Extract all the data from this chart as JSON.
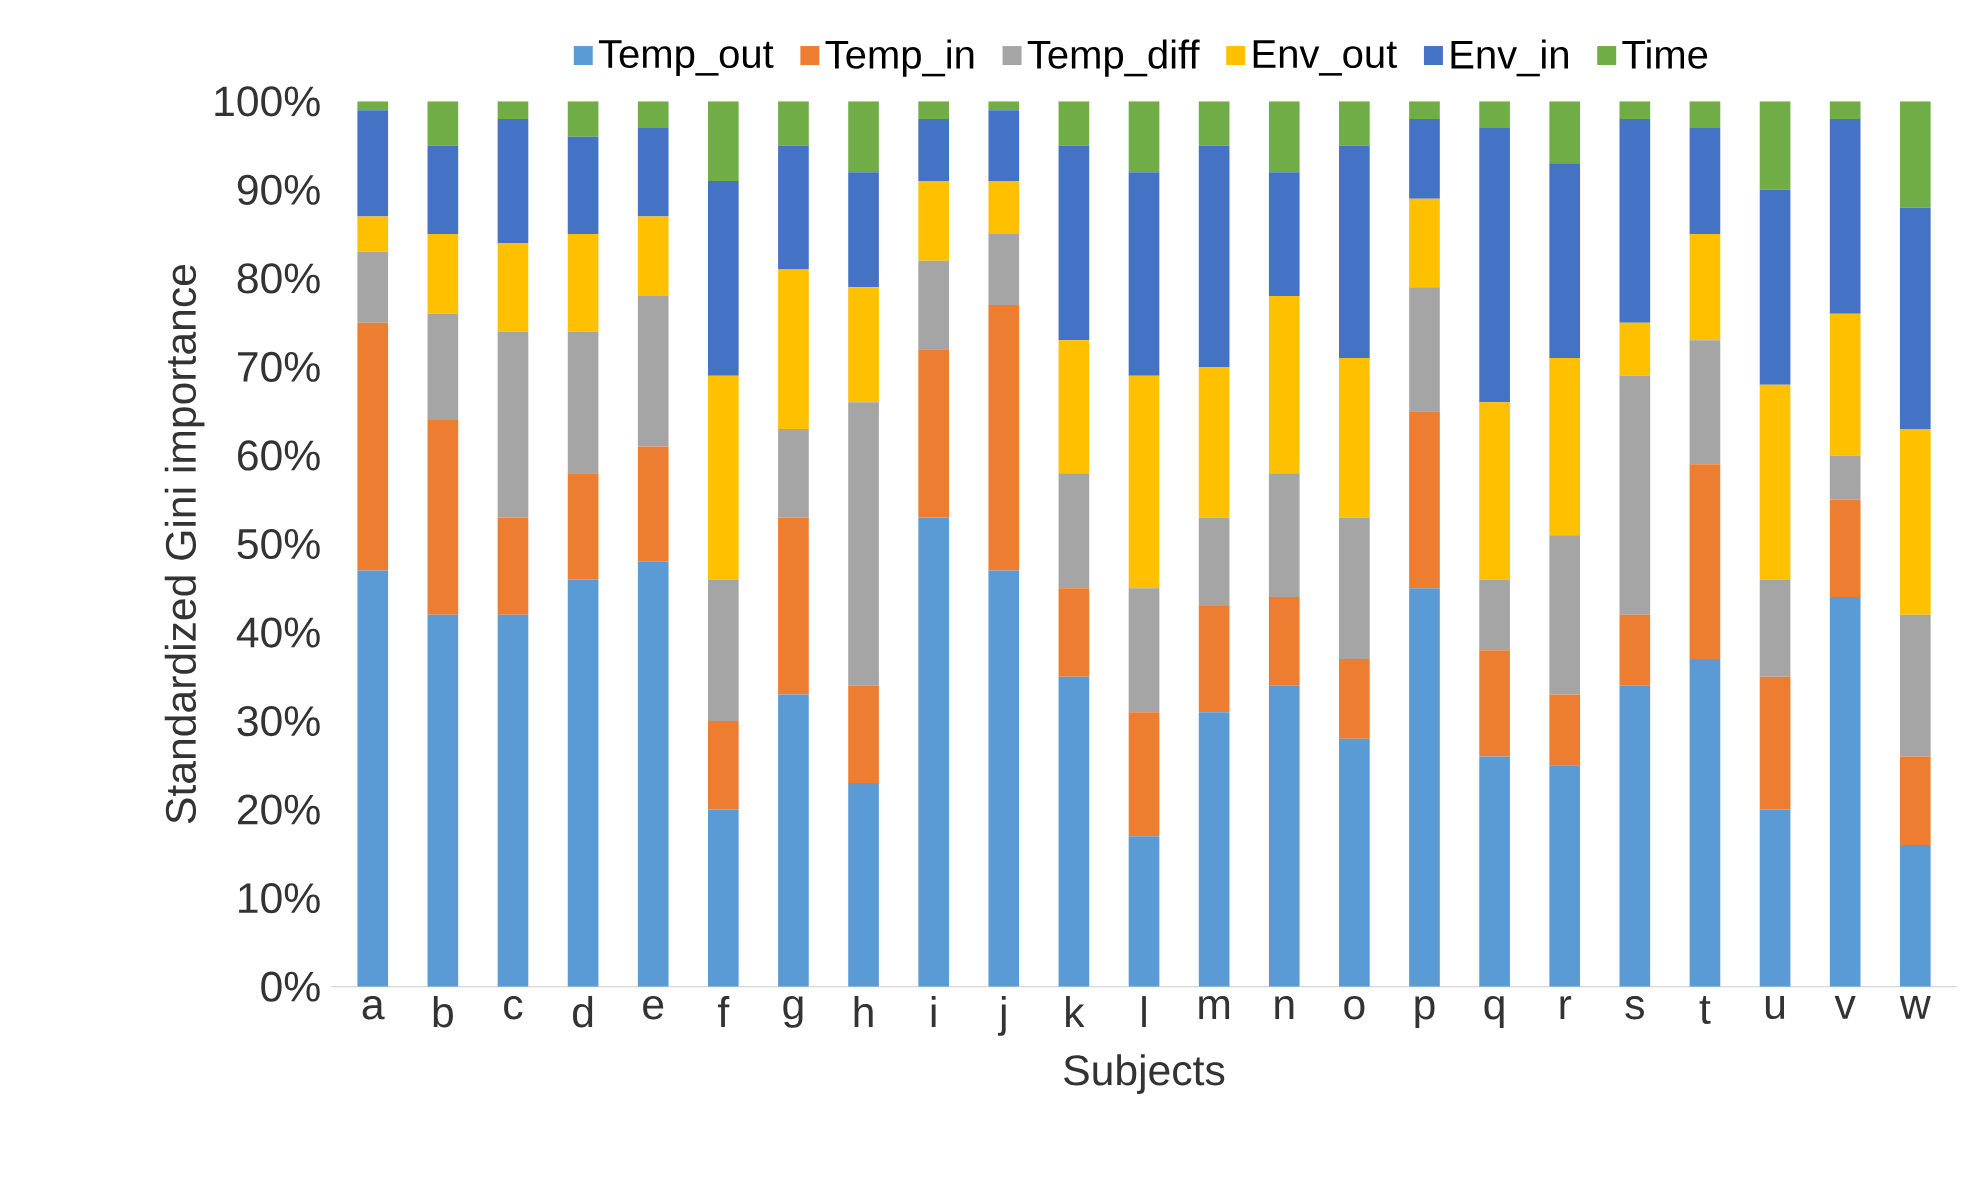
{
  "chart_data": {
    "type": "bar",
    "stacked": true,
    "xlabel": "Subjects",
    "ylabel": "Standardized Gini importance",
    "categories": [
      "a",
      "b",
      "c",
      "d",
      "e",
      "f",
      "g",
      "h",
      "i",
      "j",
      "k",
      "l",
      "m",
      "n",
      "o",
      "p",
      "q",
      "r",
      "s",
      "t",
      "u",
      "v",
      "w"
    ],
    "series": [
      {
        "name": "Temp_out",
        "color": "#5b9bd5",
        "values": [
          47,
          42,
          42,
          46,
          48,
          20,
          33,
          23,
          53,
          47,
          35,
          17,
          31,
          34,
          28,
          45,
          26,
          25,
          34,
          37,
          20,
          44,
          16
        ]
      },
      {
        "name": "Temp_in",
        "color": "#ed7d31",
        "values": [
          28,
          22,
          11,
          12,
          13,
          10,
          20,
          11,
          19,
          30,
          10,
          14,
          12,
          10,
          9,
          20,
          12,
          8,
          8,
          22,
          15,
          11,
          10
        ]
      },
      {
        "name": "Temp_diff",
        "color": "#a5a5a5",
        "values": [
          8,
          12,
          21,
          16,
          17,
          16,
          10,
          32,
          10,
          8,
          13,
          14,
          10,
          14,
          16,
          14,
          8,
          18,
          27,
          14,
          11,
          5,
          16
        ]
      },
      {
        "name": "Env_out",
        "color": "#ffc000",
        "values": [
          4,
          9,
          10,
          11,
          9,
          23,
          18,
          13,
          9,
          6,
          15,
          24,
          17,
          20,
          18,
          10,
          20,
          20,
          6,
          12,
          22,
          16,
          21
        ]
      },
      {
        "name": "Env_in",
        "color": "#4472c4",
        "values": [
          12,
          10,
          14,
          11,
          10,
          22,
          14,
          13,
          7,
          8,
          22,
          23,
          25,
          14,
          24,
          9,
          31,
          22,
          23,
          12,
          22,
          22,
          25
        ]
      },
      {
        "name": "Time",
        "color": "#70ad47",
        "values": [
          1,
          5,
          2,
          4,
          3,
          9,
          5,
          8,
          2,
          1,
          5,
          8,
          5,
          8,
          5,
          2,
          3,
          7,
          2,
          3,
          10,
          2,
          12
        ]
      }
    ],
    "ylim": [
      0,
      100
    ],
    "yticks": [
      {
        "value": 0,
        "label": "0%"
      },
      {
        "value": 10,
        "label": "10%"
      },
      {
        "value": 20,
        "label": "20%"
      },
      {
        "value": 30,
        "label": "30%"
      },
      {
        "value": 40,
        "label": "40%"
      },
      {
        "value": 50,
        "label": "50%"
      },
      {
        "value": 60,
        "label": "60%"
      },
      {
        "value": 70,
        "label": "70%"
      },
      {
        "value": 80,
        "label": "80%"
      },
      {
        "value": 90,
        "label": "90%"
      },
      {
        "value": 100,
        "label": "100%"
      }
    ],
    "grid": false,
    "legend": "top"
  }
}
